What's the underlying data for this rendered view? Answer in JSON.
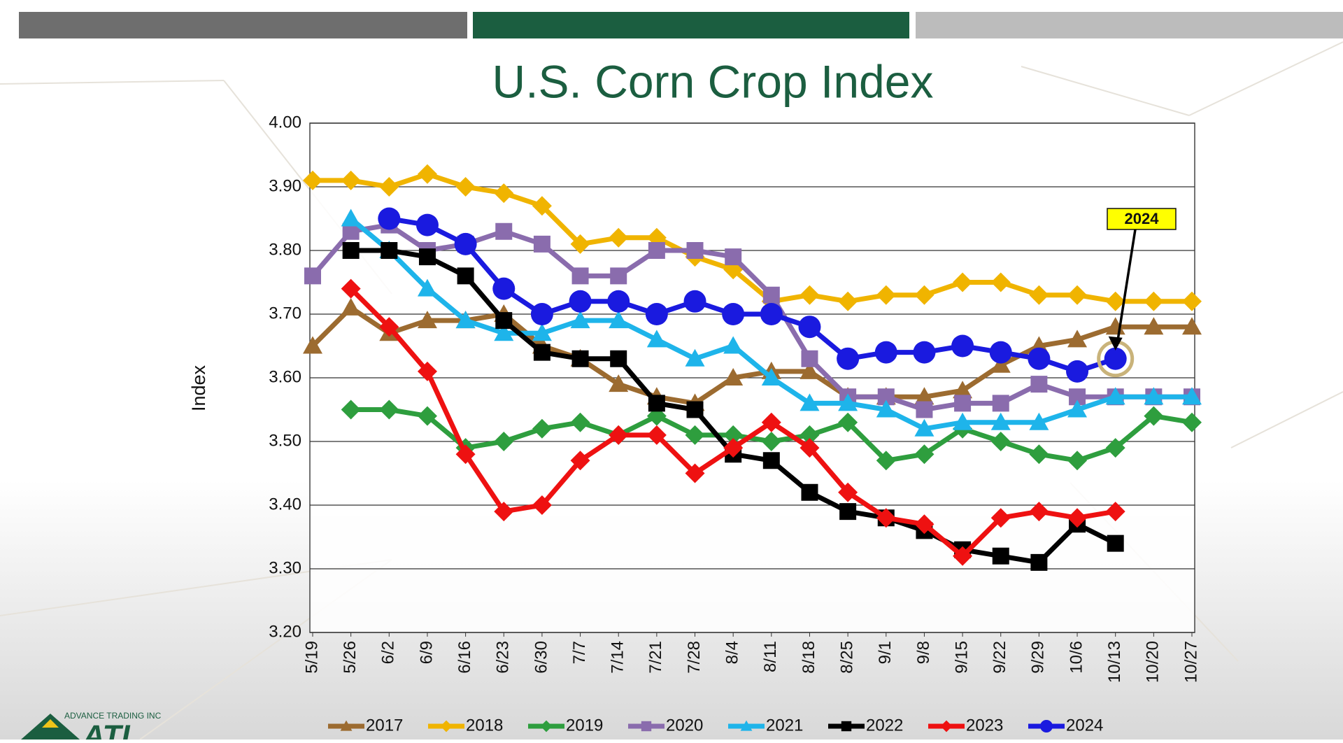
{
  "header": {
    "logo_text": "ADVANCE TRADING INC",
    "logo_mark": "ATI"
  },
  "chart_data": {
    "type": "line",
    "title": "U.S. Corn Crop Index",
    "y_label": "Index",
    "categories": [
      "5/19",
      "5/26",
      "6/2",
      "6/9",
      "6/16",
      "6/23",
      "6/30",
      "7/7",
      "7/14",
      "7/21",
      "7/28",
      "8/4",
      "8/11",
      "8/18",
      "8/25",
      "9/1",
      "9/8",
      "9/15",
      "9/22",
      "9/29",
      "10/6",
      "10/13",
      "10/20",
      "10/27"
    ],
    "ylim": [
      3.2,
      4.0
    ],
    "yticks": [
      {
        "value": 3.2,
        "label": "3.20"
      },
      {
        "value": 3.3,
        "label": "3.30"
      },
      {
        "value": 3.4,
        "label": "3.40"
      },
      {
        "value": 3.5,
        "label": "3.50"
      },
      {
        "value": 3.6,
        "label": "3.60"
      },
      {
        "value": 3.7,
        "label": "3.70"
      },
      {
        "value": 3.8,
        "label": "3.80"
      },
      {
        "value": 3.9,
        "label": "3.90"
      },
      {
        "value": 4.0,
        "label": "4.00"
      }
    ],
    "grid": true,
    "annotation": "2024",
    "series": [
      {
        "name": "2017",
        "color": "#9c6b30",
        "marker": "triangle",
        "values": [
          3.65,
          3.71,
          3.67,
          3.69,
          3.69,
          3.7,
          3.65,
          3.63,
          3.59,
          3.57,
          3.56,
          3.6,
          3.61,
          3.61,
          3.57,
          3.57,
          3.57,
          3.58,
          3.62,
          3.65,
          3.66,
          3.68,
          3.68,
          3.68
        ]
      },
      {
        "name": "2018",
        "color": "#f0b400",
        "marker": "diamond",
        "values": [
          3.91,
          3.91,
          3.9,
          3.92,
          3.9,
          3.89,
          3.87,
          3.81,
          3.82,
          3.82,
          3.79,
          3.77,
          3.72,
          3.73,
          3.72,
          3.73,
          3.73,
          3.75,
          3.75,
          3.73,
          3.73,
          3.72,
          3.72,
          3.72
        ]
      },
      {
        "name": "2019",
        "color": "#2e9e3e",
        "marker": "diamond",
        "values": [
          null,
          3.55,
          3.55,
          3.54,
          3.49,
          3.5,
          3.52,
          3.53,
          3.51,
          3.54,
          3.51,
          3.51,
          3.5,
          3.51,
          3.53,
          3.47,
          3.48,
          3.52,
          3.5,
          3.48,
          3.47,
          3.49,
          3.54,
          3.53
        ]
      },
      {
        "name": "2020",
        "color": "#8a6cad",
        "marker": "square",
        "values": [
          3.76,
          3.83,
          3.84,
          3.8,
          3.81,
          3.83,
          3.81,
          3.76,
          3.76,
          3.8,
          3.8,
          3.79,
          3.73,
          3.63,
          3.57,
          3.57,
          3.55,
          3.56,
          3.56,
          3.59,
          3.57,
          3.57,
          3.57,
          3.57
        ]
      },
      {
        "name": "2021",
        "color": "#1eb4ea",
        "marker": "triangle",
        "values": [
          null,
          3.85,
          3.8,
          3.74,
          3.69,
          3.67,
          3.67,
          3.69,
          3.69,
          3.66,
          3.63,
          3.65,
          3.6,
          3.56,
          3.56,
          3.55,
          3.52,
          3.53,
          3.53,
          3.53,
          3.55,
          3.57,
          3.57,
          3.57
        ]
      },
      {
        "name": "2022",
        "color": "#000000",
        "marker": "square",
        "values": [
          null,
          3.8,
          3.8,
          3.79,
          3.76,
          3.69,
          3.64,
          3.63,
          3.63,
          3.56,
          3.55,
          3.48,
          3.47,
          3.42,
          3.39,
          3.38,
          3.36,
          3.33,
          3.32,
          3.31,
          3.37,
          3.34,
          null,
          null
        ]
      },
      {
        "name": "2023",
        "color": "#ee1111",
        "marker": "diamond",
        "values": [
          null,
          3.74,
          3.68,
          3.61,
          3.48,
          3.39,
          3.4,
          3.47,
          3.51,
          3.51,
          3.45,
          3.49,
          3.53,
          3.49,
          3.42,
          3.38,
          3.37,
          3.32,
          3.38,
          3.39,
          3.38,
          3.39,
          null,
          null
        ]
      },
      {
        "name": "2024",
        "color": "#1a1adf",
        "marker": "circle",
        "values": [
          null,
          null,
          3.85,
          3.84,
          3.81,
          3.74,
          3.7,
          3.72,
          3.72,
          3.7,
          3.72,
          3.7,
          3.7,
          3.68,
          3.63,
          3.64,
          3.64,
          3.65,
          3.64,
          3.63,
          3.61,
          3.63,
          null,
          null
        ]
      }
    ]
  }
}
